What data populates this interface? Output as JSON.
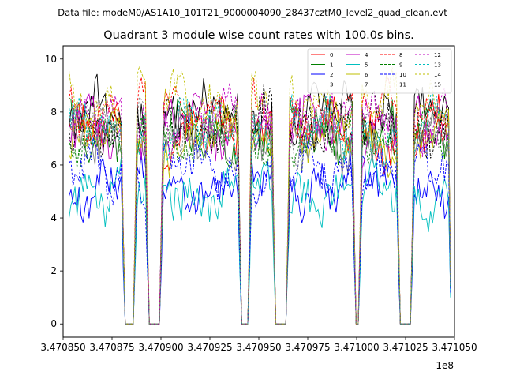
{
  "suptitle": "Data file: modeM0/AS1A10_101T21_9000004090_28437cztM0_level2_quad_clean.evt",
  "chart_data": {
    "type": "line",
    "title": "Quadrant 3 module wise count rates with 100.0s bins.",
    "xlabel": "",
    "ylabel": "",
    "x_offset_label": "1e8",
    "xlim": [
      3.47085,
      3.47105
    ],
    "ylim": [
      -0.5,
      10.5
    ],
    "x_ticks": [
      3.47085,
      3.470875,
      3.4709,
      3.470925,
      3.47095,
      3.470975,
      3.471,
      3.471025,
      3.47105
    ],
    "x_tick_labels": [
      "3.470850",
      "3.470875",
      "3.470900",
      "3.470925",
      "3.470950",
      "3.470975",
      "3.471000",
      "3.471025",
      "3.471050"
    ],
    "y_ticks": [
      0,
      2,
      4,
      6,
      8,
      10
    ],
    "y_tick_labels": [
      "0",
      "2",
      "4",
      "6",
      "8",
      "10"
    ],
    "grid": false,
    "legend_position": "top-right",
    "legend_columns": 4,
    "gaps": [
      [
        3.4708815,
        3.4708865
      ],
      [
        3.470894,
        3.4708995
      ],
      [
        3.4709405,
        3.4709445
      ],
      [
        3.4709585,
        3.4709645
      ],
      [
        3.4709995,
        3.4710015
      ],
      [
        3.4710215,
        3.4710275
      ]
    ],
    "series": [
      {
        "name": "0",
        "color": "#ff0000",
        "dash": false,
        "level": 7.2
      },
      {
        "name": "1",
        "color": "#008000",
        "dash": false,
        "level": 7.1
      },
      {
        "name": "2",
        "color": "#0000ff",
        "dash": false,
        "level": 5.3
      },
      {
        "name": "3",
        "color": "#000000",
        "dash": false,
        "level": 7.9
      },
      {
        "name": "4",
        "color": "#bf00bf",
        "dash": false,
        "level": 7.4
      },
      {
        "name": "5",
        "color": "#00bfbf",
        "dash": false,
        "level": 5.0
      },
      {
        "name": "6",
        "color": "#bfbf00",
        "dash": false,
        "level": 7.0
      },
      {
        "name": "7",
        "color": "#808080",
        "dash": false,
        "level": 6.9
      },
      {
        "name": "8",
        "color": "#ff0000",
        "dash": true,
        "level": 8.1
      },
      {
        "name": "9",
        "color": "#008000",
        "dash": true,
        "level": 7.0
      },
      {
        "name": "10",
        "color": "#0000ff",
        "dash": true,
        "level": 5.8
      },
      {
        "name": "11",
        "color": "#000000",
        "dash": true,
        "level": 7.6
      },
      {
        "name": "12",
        "color": "#bf00bf",
        "dash": true,
        "level": 7.7
      },
      {
        "name": "13",
        "color": "#00bfbf",
        "dash": true,
        "level": 7.3
      },
      {
        "name": "14",
        "color": "#bfbf00",
        "dash": true,
        "level": 8.4
      },
      {
        "name": "15",
        "color": "#808080",
        "dash": true,
        "level": 7.3
      }
    ]
  }
}
